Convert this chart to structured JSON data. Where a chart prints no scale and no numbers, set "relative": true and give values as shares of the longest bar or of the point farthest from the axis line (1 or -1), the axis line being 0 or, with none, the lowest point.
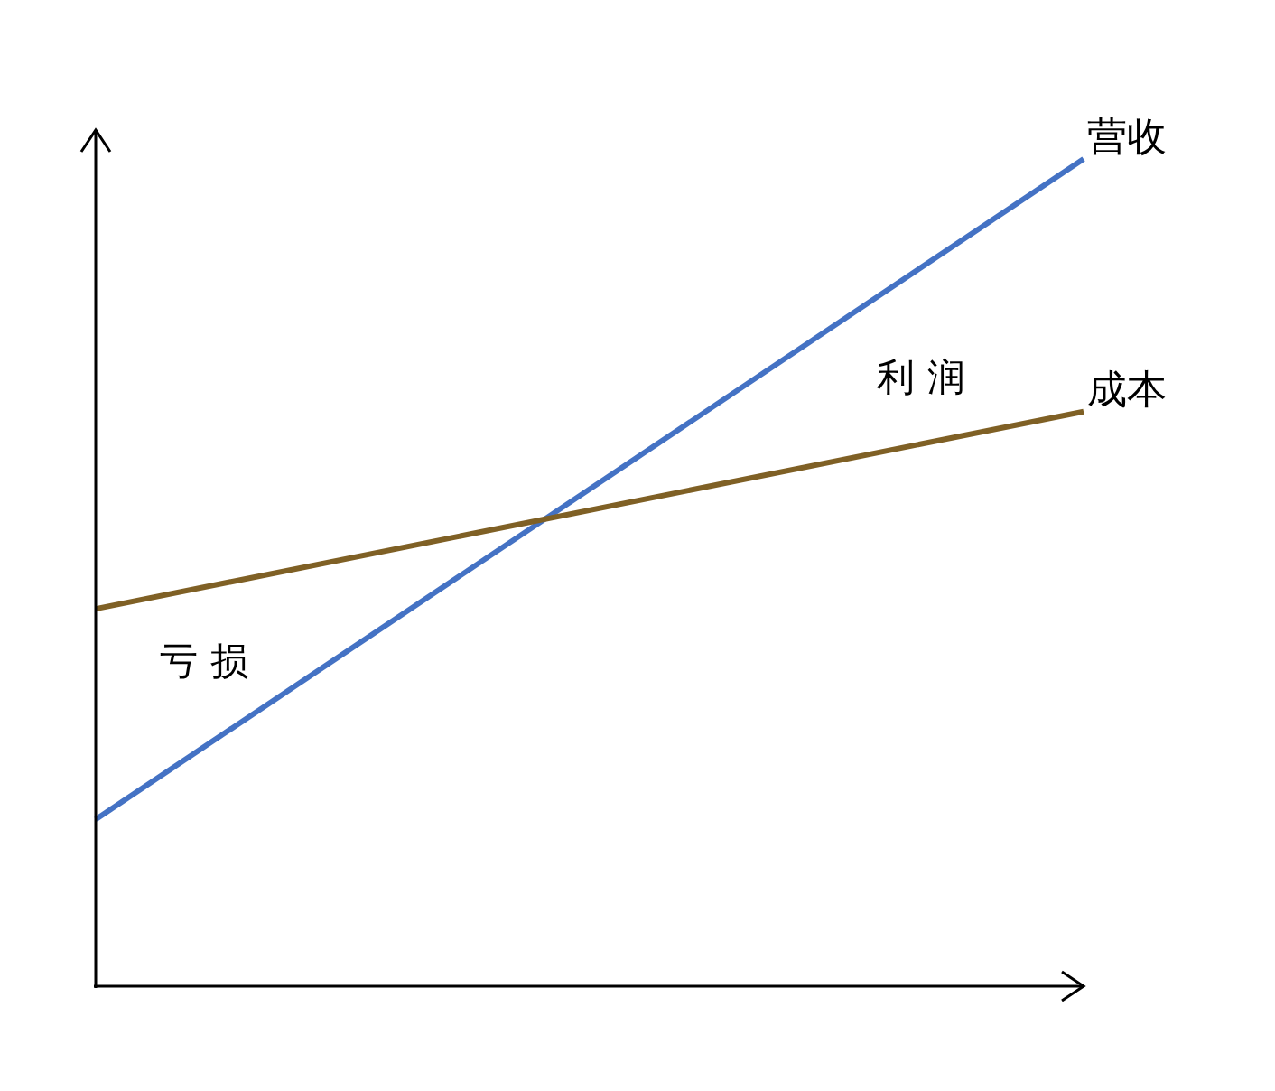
{
  "chart_data": {
    "type": "line",
    "relative": true,
    "categories": [
      null,
      null
    ],
    "grid": false,
    "marker": "none",
    "line_style": "solid",
    "series": [
      {
        "name": "营收",
        "color": "#4472c4",
        "values": [
          0.2,
          1
        ]
      },
      {
        "name": "成本",
        "color": "#7f6025",
        "values": [
          0.455,
          0.694
        ]
      }
    ],
    "annotations": [
      "亏 损",
      "利 润"
    ]
  }
}
